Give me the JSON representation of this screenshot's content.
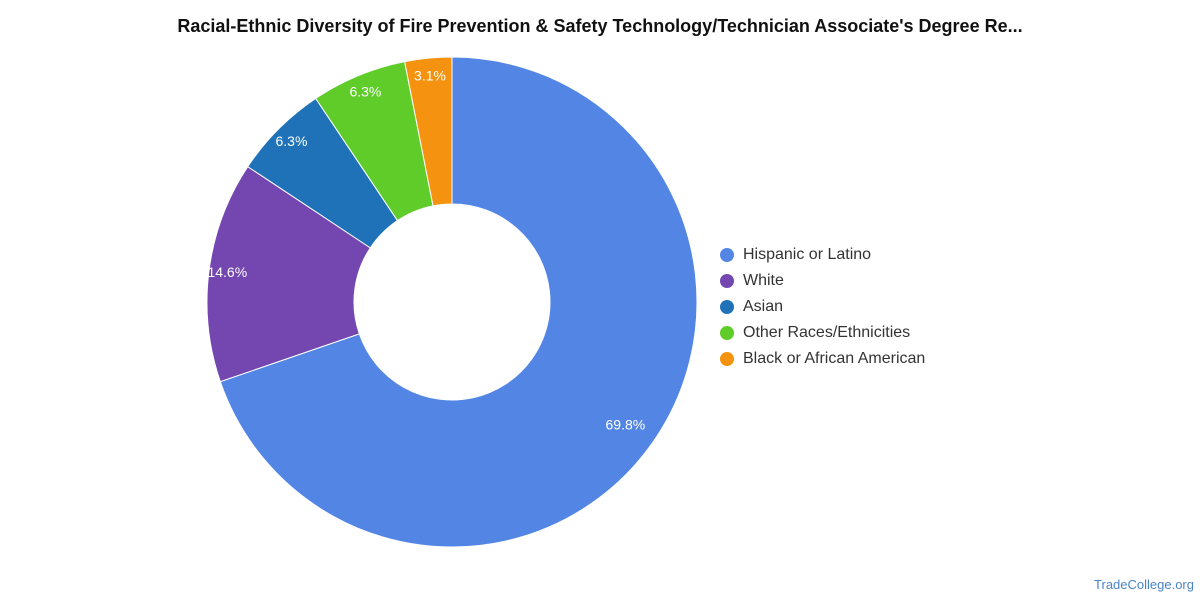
{
  "chart_data": {
    "type": "pie",
    "title": "Racial-Ethnic Diversity of Fire Prevention & Safety Technology/Technician Associate's Degree Re...",
    "donut": true,
    "legend_position": "right",
    "slices": [
      {
        "name": "Hispanic or Latino",
        "value": 69.8,
        "label": "69.8%",
        "color": "#5386e4"
      },
      {
        "name": "White",
        "value": 14.6,
        "label": "14.6%",
        "color": "#7446b0"
      },
      {
        "name": "Asian",
        "value": 6.3,
        "label": "6.3%",
        "color": "#1f72b8"
      },
      {
        "name": "Other Races/Ethnicities",
        "value": 6.3,
        "label": "6.3%",
        "color": "#5fcc2a"
      },
      {
        "name": "Black or African American",
        "value": 3.1,
        "label": "3.1%",
        "color": "#f5920f"
      }
    ]
  },
  "footer": {
    "source": "TradeCollege.org"
  }
}
